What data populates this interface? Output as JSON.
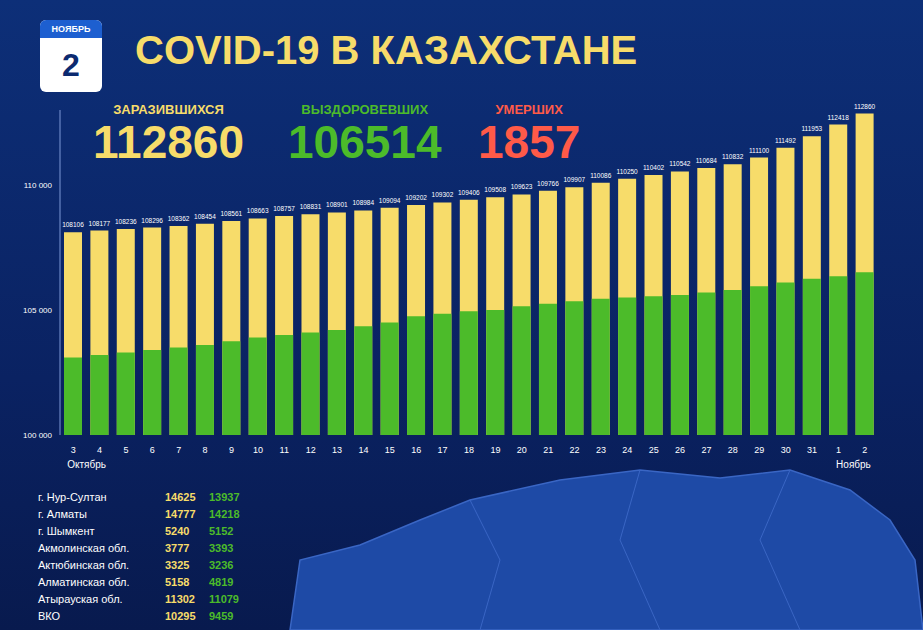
{
  "header": {
    "month": "НОЯБРЬ",
    "day": "2",
    "title": "COVID-19 В КАЗАХСТАНЕ"
  },
  "chart_data": {
    "type": "bar",
    "categories": [
      "3",
      "4",
      "5",
      "6",
      "7",
      "8",
      "9",
      "10",
      "11",
      "12",
      "13",
      "14",
      "15",
      "16",
      "17",
      "18",
      "19",
      "20",
      "21",
      "22",
      "23",
      "24",
      "25",
      "26",
      "27",
      "28",
      "29",
      "30",
      "31",
      "1",
      "2"
    ],
    "month_labels": [
      "Октябрь",
      "Ноябрь"
    ],
    "series": [
      {
        "name": "ЗАРАЗИВШИХСЯ",
        "color": "#f7dc6a",
        "total": 112860,
        "data_labels": true,
        "values": [
          108106,
          108177,
          108236,
          108296,
          108362,
          108454,
          108561,
          108663,
          108757,
          108831,
          108901,
          108984,
          109094,
          109202,
          109302,
          109406,
          109508,
          109623,
          109766,
          109907,
          110086,
          110250,
          110402,
          110542,
          110684,
          110832,
          111100,
          111492,
          111953,
          112418,
          112860
        ]
      },
      {
        "name": "ВЫЗДОРОВЕВШИХ",
        "color": "#4cbb2a",
        "total": 106514,
        "values": [
          103100,
          103200,
          103300,
          103400,
          103500,
          103600,
          103750,
          103900,
          104000,
          104100,
          104200,
          104350,
          104500,
          104750,
          104850,
          104950,
          105000,
          105150,
          105250,
          105350,
          105450,
          105500,
          105550,
          105600,
          105700,
          105800,
          105950,
          106100,
          106250,
          106350,
          106514
        ]
      }
    ],
    "extra_stat": {
      "label": "УМЕРШИХ",
      "value": 1857,
      "color": "#ff5a48"
    },
    "ylim": [
      100000,
      113000
    ],
    "yticks": [
      {
        "value": 100000,
        "label": "100 000"
      },
      {
        "value": 105000,
        "label": "105 000"
      },
      {
        "value": 110000,
        "label": "110 000"
      }
    ],
    "grid": false
  },
  "regions": {
    "rows": [
      [
        "г. Нур-Султан",
        14625,
        13937
      ],
      [
        "г. Алматы",
        14777,
        14218
      ],
      [
        "г. Шымкент",
        5240,
        5152
      ],
      [
        "Акмолинская обл.",
        3777,
        3393
      ],
      [
        "Актюбинская обл.",
        3325,
        3236
      ],
      [
        "Алматинская обл.",
        5158,
        4819
      ],
      [
        "Атырауская обл.",
        11302,
        11079
      ],
      [
        "ВКО",
        10295,
        9459
      ]
    ]
  }
}
